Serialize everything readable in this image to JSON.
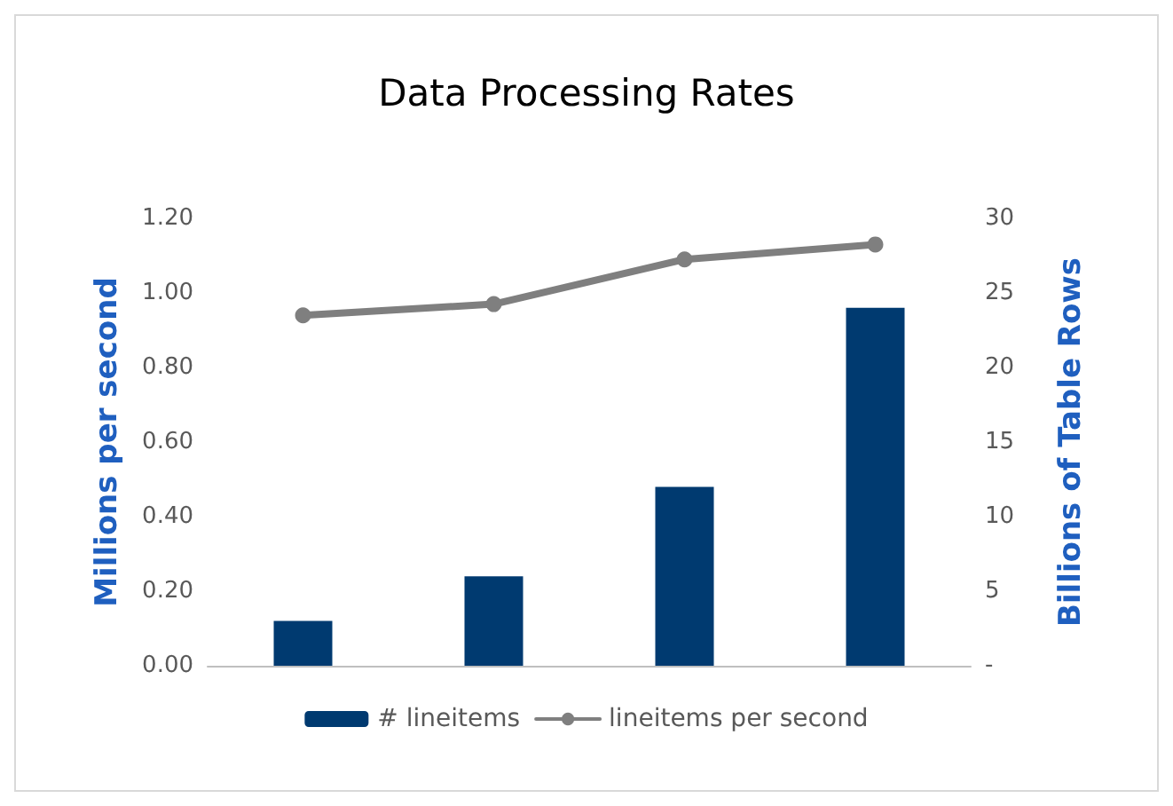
{
  "chart_data": {
    "type": "bar",
    "title": "Data Processing Rates",
    "ylabel": "Millions per second",
    "y2label": "Billions of Table Rows",
    "categories": [
      null,
      null,
      null,
      null
    ],
    "series": [
      {
        "name": "# lineitems",
        "axis": "y2",
        "color": "#003a70",
        "values": [
          3,
          6,
          12,
          24
        ]
      },
      {
        "name": "lineitems per second",
        "type": "line",
        "axis": "y",
        "color": "#7f7f7f",
        "values": [
          0.94,
          0.97,
          1.09,
          1.13
        ]
      }
    ],
    "ylim": [
      0,
      1.2
    ],
    "yticks": [
      {
        "value": 0,
        "label": "0.00"
      },
      {
        "value": 0.2,
        "label": "0.20"
      },
      {
        "value": 0.4,
        "label": "0.40"
      },
      {
        "value": 0.6,
        "label": "0.60"
      },
      {
        "value": 0.8,
        "label": "0.80"
      },
      {
        "value": 1,
        "label": "1.00"
      },
      {
        "value": 1.2,
        "label": "1.20"
      }
    ],
    "y2lim": [
      0,
      30
    ],
    "y2ticks": [
      {
        "value": 0,
        "label": "-"
      },
      5,
      10,
      15,
      20,
      25,
      30
    ],
    "grid": false,
    "legend": "bottom",
    "marker": "circle",
    "line_style": "solid"
  }
}
